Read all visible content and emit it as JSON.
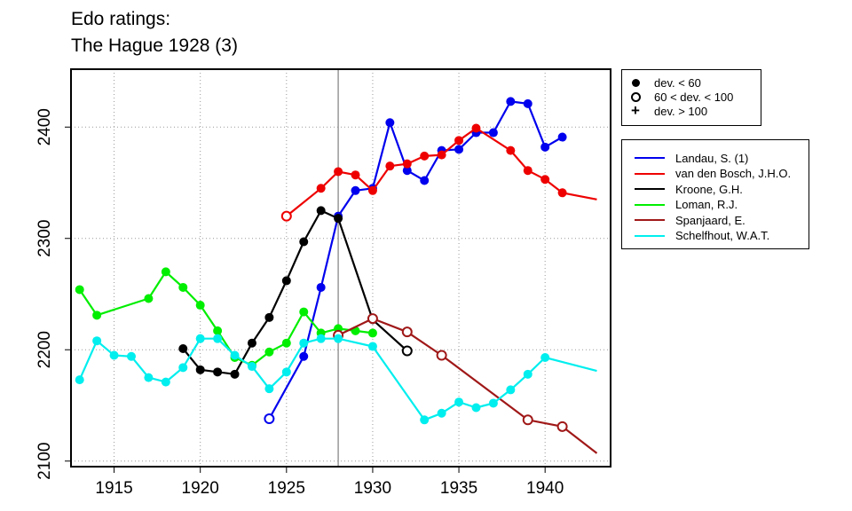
{
  "title_lines": [
    "Edo ratings:",
    "The Hague 1928 (3)"
  ],
  "chart_data": {
    "type": "line",
    "xlim": [
      1912.5,
      1943.8
    ],
    "ylim": [
      2095,
      2452
    ],
    "x_ticks": [
      1915,
      1920,
      1925,
      1930,
      1935,
      1940
    ],
    "y_ticks": [
      2100,
      2200,
      2300,
      2400
    ],
    "grid": true,
    "event_year": 1928,
    "symbol_legend": [
      {
        "symbol": "filled",
        "label": "dev. < 60"
      },
      {
        "symbol": "open",
        "label": "60 < dev. < 100"
      },
      {
        "symbol": "plus",
        "label": "dev. > 100"
      }
    ],
    "series": [
      {
        "name": "Landau, S. (1)",
        "color": "#0000ee",
        "points": [
          [
            1924,
            2138,
            "open"
          ],
          [
            1926,
            2194,
            "filled"
          ],
          [
            1927,
            2256,
            "filled"
          ],
          [
            1928,
            2320,
            "filled"
          ],
          [
            1929,
            2343,
            "filled"
          ],
          [
            1930,
            2345,
            "filled"
          ],
          [
            1931,
            2404,
            "filled"
          ],
          [
            1932,
            2361,
            "filled"
          ],
          [
            1933,
            2352,
            "filled"
          ],
          [
            1934,
            2379,
            "filled"
          ],
          [
            1935,
            2380,
            "filled"
          ],
          [
            1936,
            2395,
            "filled"
          ],
          [
            1937,
            2395,
            "filled"
          ],
          [
            1938,
            2423,
            "filled"
          ],
          [
            1939,
            2421,
            "filled"
          ],
          [
            1940,
            2382,
            "filled"
          ],
          [
            1941,
            2391,
            "filled"
          ]
        ]
      },
      {
        "name": "van den Bosch, J.H.O.",
        "color": "#ee0000",
        "points": [
          [
            1925,
            2320,
            "open"
          ],
          [
            1927,
            2345,
            "filled"
          ],
          [
            1928,
            2360,
            "filled"
          ],
          [
            1929,
            2357,
            "filled"
          ],
          [
            1930,
            2343,
            "filled"
          ],
          [
            1931,
            2365,
            "filled"
          ],
          [
            1932,
            2367,
            "filled"
          ],
          [
            1933,
            2374,
            "filled"
          ],
          [
            1934,
            2375,
            "filled"
          ],
          [
            1935,
            2388,
            "filled"
          ],
          [
            1936,
            2399,
            "filled"
          ],
          [
            1938,
            2379,
            "filled"
          ],
          [
            1939,
            2361,
            "filled"
          ],
          [
            1940,
            2353,
            "filled"
          ],
          [
            1941,
            2341,
            "filled"
          ],
          [
            1943,
            2335,
            "none"
          ]
        ]
      },
      {
        "name": "Kroone, G.H.",
        "color": "#000000",
        "points": [
          [
            1919,
            2201,
            "filled"
          ],
          [
            1920,
            2182,
            "filled"
          ],
          [
            1921,
            2180,
            "filled"
          ],
          [
            1922,
            2178,
            "filled"
          ],
          [
            1923,
            2206,
            "filled"
          ],
          [
            1924,
            2229,
            "filled"
          ],
          [
            1925,
            2262,
            "filled"
          ],
          [
            1926,
            2297,
            "filled"
          ],
          [
            1927,
            2325,
            "filled"
          ],
          [
            1928,
            2318,
            "filled"
          ],
          [
            1930,
            2227,
            "filled"
          ],
          [
            1932,
            2199,
            "open"
          ]
        ]
      },
      {
        "name": "Loman, R.J.",
        "color": "#00ee00",
        "points": [
          [
            1913,
            2254,
            "filled"
          ],
          [
            1914,
            2231,
            "filled"
          ],
          [
            1917,
            2246,
            "filled"
          ],
          [
            1918,
            2270,
            "filled"
          ],
          [
            1919,
            2256,
            "filled"
          ],
          [
            1920,
            2240,
            "filled"
          ],
          [
            1921,
            2217,
            "filled"
          ],
          [
            1922,
            2193,
            "filled"
          ],
          [
            1923,
            2186,
            "filled"
          ],
          [
            1924,
            2198,
            "filled"
          ],
          [
            1925,
            2206,
            "filled"
          ],
          [
            1926,
            2234,
            "filled"
          ],
          [
            1927,
            2215,
            "filled"
          ],
          [
            1928,
            2219,
            "filled"
          ],
          [
            1929,
            2217,
            "filled"
          ],
          [
            1930,
            2215,
            "filled"
          ]
        ]
      },
      {
        "name": "Spanjaard, E.",
        "color": "#a01818",
        "points": [
          [
            1928,
            2213,
            "open"
          ],
          [
            1930,
            2228,
            "open"
          ],
          [
            1932,
            2216,
            "open"
          ],
          [
            1934,
            2195,
            "open"
          ],
          [
            1939,
            2137,
            "open"
          ],
          [
            1941,
            2131,
            "open"
          ],
          [
            1943,
            2107,
            "none"
          ]
        ]
      },
      {
        "name": "Schelfhout, W.A.T.",
        "color": "#00eeee",
        "points": [
          [
            1913,
            2173,
            "filled"
          ],
          [
            1914,
            2208,
            "filled"
          ],
          [
            1915,
            2195,
            "filled"
          ],
          [
            1916,
            2194,
            "filled"
          ],
          [
            1917,
            2175,
            "filled"
          ],
          [
            1918,
            2171,
            "filled"
          ],
          [
            1919,
            2184,
            "filled"
          ],
          [
            1920,
            2210,
            "filled"
          ],
          [
            1921,
            2210,
            "filled"
          ],
          [
            1922,
            2195,
            "filled"
          ],
          [
            1923,
            2185,
            "filled"
          ],
          [
            1924,
            2165,
            "filled"
          ],
          [
            1925,
            2180,
            "filled"
          ],
          [
            1926,
            2206,
            "filled"
          ],
          [
            1927,
            2210,
            "filled"
          ],
          [
            1928,
            2210,
            "filled"
          ],
          [
            1930,
            2203,
            "filled"
          ],
          [
            1933,
            2137,
            "filled"
          ],
          [
            1934,
            2143,
            "filled"
          ],
          [
            1935,
            2153,
            "filled"
          ],
          [
            1936,
            2148,
            "filled"
          ],
          [
            1937,
            2152,
            "filled"
          ],
          [
            1938,
            2164,
            "filled"
          ],
          [
            1939,
            2178,
            "filled"
          ],
          [
            1940,
            2193,
            "filled"
          ],
          [
            1943,
            2181,
            "none"
          ]
        ]
      }
    ]
  }
}
